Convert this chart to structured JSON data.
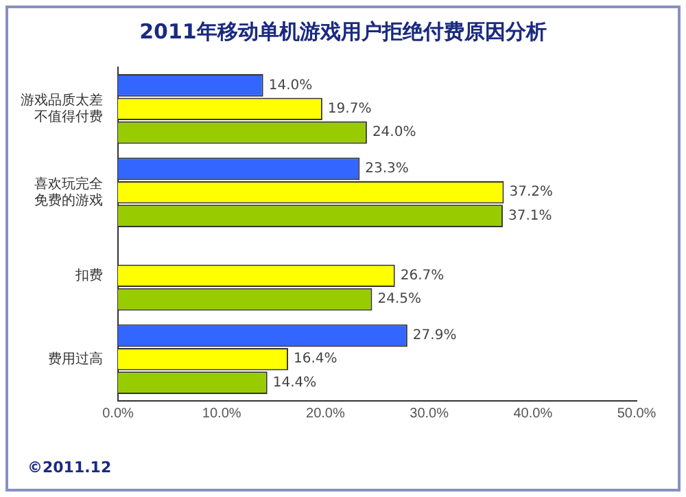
{
  "chart_data": {
    "type": "bar",
    "orientation": "horizontal",
    "title": "2011年移动单机游戏用户拒绝付费原因分析",
    "categories": [
      "游戏品质太差不值得付费",
      "喜欢玩完全免费的游戏",
      "扣费",
      "费用过高"
    ],
    "series": [
      {
        "color": "#3366ff",
        "values": [
          14.0,
          23.3,
          null,
          27.9
        ],
        "value_labels": [
          "14.0%",
          "23.3%",
          null,
          "27.9%"
        ]
      },
      {
        "color": "#ffff00",
        "values": [
          19.7,
          37.2,
          26.7,
          16.4
        ],
        "value_labels": [
          "19.7%",
          "37.2%",
          "26.7%",
          "16.4%"
        ]
      },
      {
        "color": "#99cc00",
        "values": [
          24.0,
          37.1,
          24.5,
          14.4
        ],
        "value_labels": [
          "24.0%",
          "37.1%",
          "24.5%",
          "14.4%"
        ]
      }
    ],
    "xlim": [
      0,
      50
    ],
    "xticks": [
      {
        "value": 0,
        "label": "0.0%"
      },
      {
        "value": 10,
        "label": "10.0%"
      },
      {
        "value": 20,
        "label": "20.0%"
      },
      {
        "value": 30,
        "label": "30.0%"
      },
      {
        "value": 40,
        "label": "40.0%"
      },
      {
        "value": 50,
        "label": "50.0%"
      }
    ],
    "grid": false,
    "legend": false,
    "annotations": [
      "©2011.12"
    ]
  }
}
